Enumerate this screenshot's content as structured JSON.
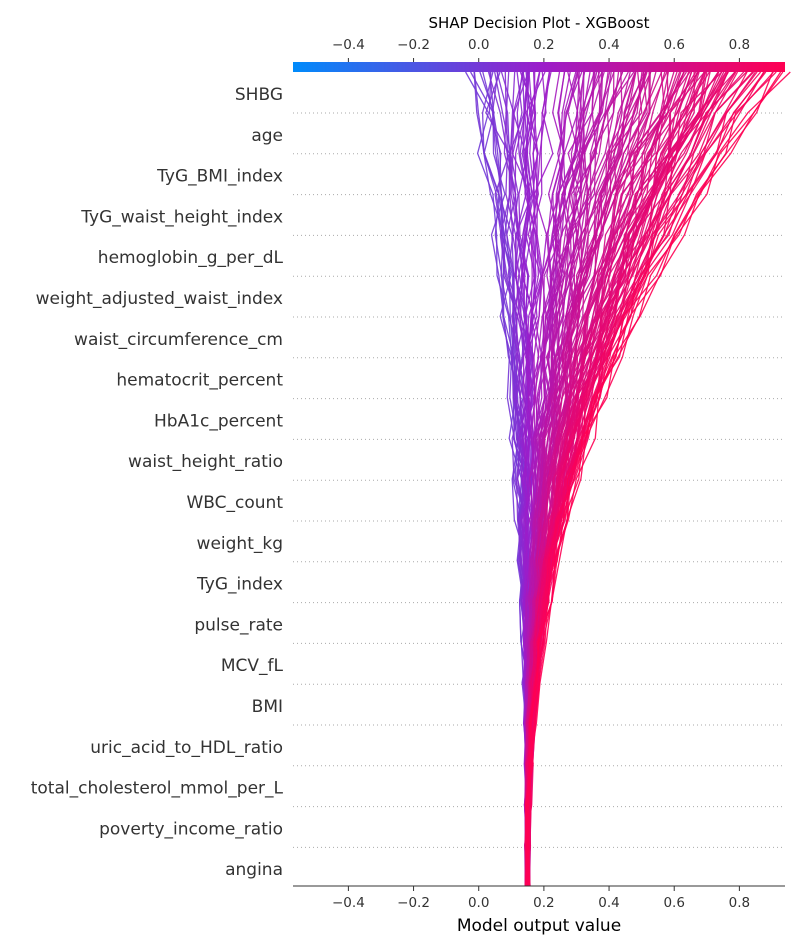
{
  "chart_data": {
    "type": "line",
    "title": "SHAP Decision Plot - XGBoost",
    "xlabel": "Model output value",
    "ylabel": "",
    "base_value": 0.15,
    "xlim": [
      -0.57,
      0.94
    ],
    "x_ticks": [
      -0.4,
      -0.2,
      0.0,
      0.2,
      0.4,
      0.6,
      0.8
    ],
    "x_tick_labels": [
      "−0.4",
      "−0.2",
      "0.0",
      "0.2",
      "0.4",
      "0.6",
      "0.8"
    ],
    "features": [
      "SHBG",
      "age",
      "TyG_BMI_index",
      "TyG_waist_height_index",
      "hemoglobin_g_per_dL",
      "weight_adjusted_waist_index",
      "waist_circumference_cm",
      "hematocrit_percent",
      "HbA1c_percent",
      "waist_height_ratio",
      "WBC_count",
      "weight_kg",
      "TyG_index",
      "pulse_rate",
      "MCV_fL",
      "BMI",
      "uric_acid_to_HDL_ratio",
      "total_cholesterol_mmol_per_L",
      "poverty_income_ratio",
      "angina"
    ],
    "colormap": [
      "#008bfb",
      "#ff0052"
    ],
    "grid_style": "dotted",
    "n_lines": 160,
    "output_range": [
      -0.05,
      0.94
    ]
  }
}
